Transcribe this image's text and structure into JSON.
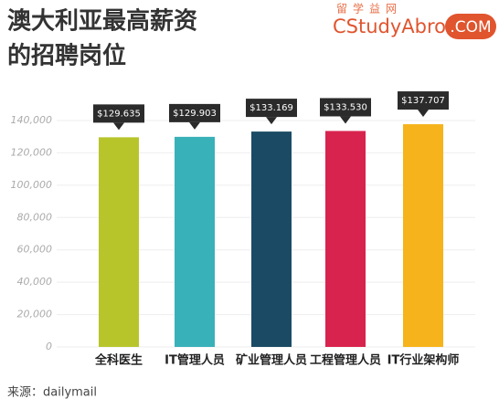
{
  "title_lines": [
    "澳大利亚最高薪资",
    "的招聘岗位"
  ],
  "logo": {
    "cn": "留学益网",
    "name": "CStudyAbroad",
    "suffix": ".COM"
  },
  "source": "来源：dailymail",
  "chart_data": {
    "type": "bar",
    "categories": [
      "全科医生",
      "IT管理人员",
      "矿业管理人员",
      "工程管理人员",
      "IT行业架构师"
    ],
    "values": [
      129635,
      129903,
      133169,
      133530,
      137707
    ],
    "value_labels": [
      "$129.635",
      "$129.903",
      "$133.169",
      "$133.530",
      "$137.707"
    ],
    "colors": [
      "#b7c52b",
      "#39b1b9",
      "#1b4b64",
      "#d8234e",
      "#f6b31b"
    ],
    "ylim": [
      0,
      140000
    ],
    "yticks": [
      0,
      {
        "value": 20000,
        "label": "20,000"
      },
      {
        "value": 40000,
        "label": "40,000"
      },
      {
        "value": 60000,
        "label": "60,000"
      },
      {
        "value": 80000,
        "label": "80,000"
      },
      {
        "value": 100000,
        "label": "100,000"
      },
      {
        "value": 120000,
        "label": "120,000"
      },
      {
        "value": 140000,
        "label": "140,000"
      }
    ],
    "grid": true
  }
}
